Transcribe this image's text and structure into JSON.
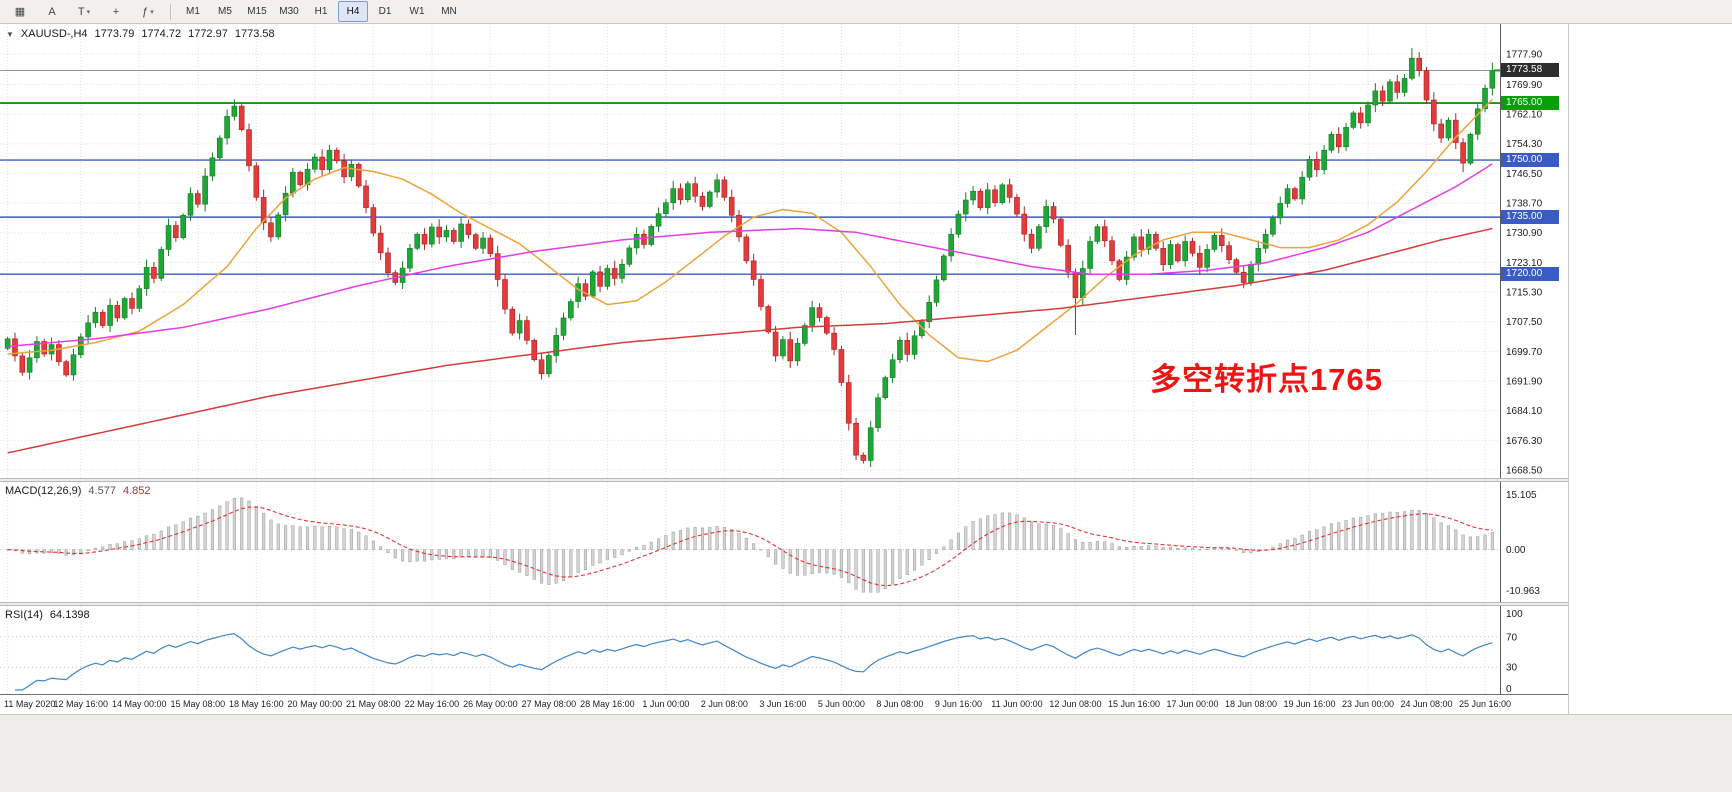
{
  "toolbar": {
    "icons": [
      {
        "name": "charts-grid-icon",
        "glyph": "▦",
        "caret": false
      },
      {
        "name": "auto-scroll-icon",
        "glyph": "A",
        "caret": false
      },
      {
        "name": "text-tool-icon",
        "glyph": "T",
        "caret": true
      },
      {
        "name": "crosshair-icon",
        "glyph": "+",
        "caret": false
      },
      {
        "name": "indicators-icon",
        "glyph": "ƒ",
        "caret": true
      }
    ],
    "timeframes": [
      {
        "label": "M1",
        "active": false
      },
      {
        "label": "M5",
        "active": false
      },
      {
        "label": "M15",
        "active": false
      },
      {
        "label": "M30",
        "active": false
      },
      {
        "label": "H1",
        "active": false
      },
      {
        "label": "H4",
        "active": true
      },
      {
        "label": "D1",
        "active": false
      },
      {
        "label": "W1",
        "active": false
      },
      {
        "label": "MN",
        "active": false
      }
    ]
  },
  "chart": {
    "symbol_line": {
      "collapse_glyph": "▼",
      "symbol": "XAUUSD-,H4",
      "open": "1773.79",
      "high": "1774.72",
      "low": "1772.97",
      "close": "1773.58"
    },
    "annotation": {
      "text": "多空转折点1765",
      "color": "#f21414"
    },
    "price_axis": {
      "ticks": [
        "1777.90",
        "1769.90",
        "1762.10",
        "1754.30",
        "1746.50",
        "1738.70",
        "1730.90",
        "1723.10",
        "1715.30",
        "1707.50",
        "1699.70",
        "1691.90",
        "1684.10",
        "1676.30",
        "1668.50"
      ],
      "current": {
        "label": "1773.58",
        "price": 1773.58,
        "bg": "#2d2d2d"
      },
      "levels": [
        {
          "label": "1765.00",
          "price": 1765.0,
          "color": "#0a9e0a"
        },
        {
          "label": "1750.00",
          "price": 1750.0,
          "color": "#3b5bc4"
        },
        {
          "label": "1735.00",
          "price": 1735.0,
          "color": "#3b5bc4"
        },
        {
          "label": "1720.00",
          "price": 1720.0,
          "color": "#3b5bc4"
        }
      ]
    },
    "macd_panel": {
      "name": "MACD(12,26,9)",
      "value1": "4.577",
      "value2": "4.852",
      "scale_labels": [
        "15.105",
        "0.00",
        "-10.963"
      ]
    },
    "rsi_panel": {
      "name": "RSI(14)",
      "value": "64.1398",
      "scale_labels": [
        "100",
        "70",
        "30",
        "0"
      ]
    }
  },
  "chart_data": {
    "type": "candlestick",
    "symbol": "XAUUSD",
    "timeframe": "H4",
    "title": "XAUUSD-,H4",
    "ohlc_display": {
      "open": 1773.79,
      "high": 1774.72,
      "low": 1772.97,
      "close": 1773.58
    },
    "price_axis_range": [
      1668.5,
      1777.9
    ],
    "candle_up_color": "#1ea636",
    "candle_down_color": "#e23b3b",
    "first_open": 1700.5,
    "closes": [
      1703.0,
      1698.5,
      1694.2,
      1698.0,
      1702.3,
      1699.0,
      1701.5,
      1697.0,
      1693.5,
      1698.8,
      1703.5,
      1707.2,
      1710.0,
      1706.5,
      1711.8,
      1708.5,
      1713.6,
      1711.0,
      1716.2,
      1721.8,
      1718.9,
      1726.5,
      1732.8,
      1729.6,
      1735.5,
      1741.2,
      1738.4,
      1745.8,
      1750.6,
      1755.8,
      1761.5,
      1764.2,
      1758.0,
      1748.5,
      1740.2,
      1733.5,
      1729.8,
      1735.6,
      1741.3,
      1746.8,
      1743.5,
      1747.6,
      1750.8,
      1747.5,
      1752.6,
      1749.8,
      1745.6,
      1748.9,
      1743.2,
      1737.5,
      1730.8,
      1725.6,
      1720.4,
      1717.8,
      1721.6,
      1726.8,
      1730.5,
      1727.9,
      1732.4,
      1729.8,
      1731.5,
      1728.6,
      1733.2,
      1730.4,
      1726.8,
      1729.5,
      1725.4,
      1718.6,
      1710.8,
      1704.5,
      1707.8,
      1702.6,
      1697.5,
      1693.8,
      1698.6,
      1703.9,
      1708.5,
      1712.8,
      1717.5,
      1714.2,
      1720.6,
      1716.8,
      1721.5,
      1718.9,
      1722.6,
      1726.9,
      1730.5,
      1727.8,
      1732.6,
      1735.9,
      1738.8,
      1742.5,
      1739.6,
      1743.8,
      1740.5,
      1737.8,
      1741.6,
      1744.8,
      1740.2,
      1735.5,
      1729.8,
      1723.5,
      1718.6,
      1711.5,
      1704.8,
      1698.5,
      1702.8,
      1697.2,
      1701.8,
      1706.5,
      1711.2,
      1708.6,
      1704.5,
      1700.2,
      1691.5,
      1680.8,
      1672.4,
      1671.0,
      1679.6,
      1687.5,
      1692.8,
      1697.5,
      1702.6,
      1698.9,
      1703.8,
      1707.5,
      1712.6,
      1718.5,
      1724.8,
      1730.5,
      1735.8,
      1739.5,
      1741.8,
      1737.5,
      1742.2,
      1738.8,
      1743.5,
      1740.2,
      1735.8,
      1730.5,
      1726.8,
      1732.5,
      1737.8,
      1734.5,
      1727.6,
      1720.5,
      1713.8,
      1721.5,
      1728.6,
      1732.5,
      1728.8,
      1723.5,
      1718.6,
      1724.5,
      1729.8,
      1726.5,
      1730.5,
      1726.8,
      1722.5,
      1727.8,
      1723.5,
      1728.6,
      1725.5,
      1721.8,
      1726.5,
      1730.2,
      1727.5,
      1723.8,
      1720.5,
      1717.8,
      1722.6,
      1726.8,
      1730.5,
      1734.8,
      1738.6,
      1742.5,
      1739.8,
      1745.5,
      1750.2,
      1747.5,
      1752.6,
      1756.8,
      1753.5,
      1758.6,
      1762.4,
      1759.8,
      1764.5,
      1768.2,
      1765.5,
      1770.6,
      1767.8,
      1771.5,
      1776.8,
      1773.5,
      1765.8,
      1759.5,
      1755.8,
      1760.5,
      1754.6,
      1749.2,
      1756.8,
      1763.5,
      1768.9,
      1773.58
    ],
    "wick_overrides": {
      "31": {
        "high": 1766.0
      },
      "117": {
        "low": 1670.2
      },
      "146": {
        "low": 1704.0
      },
      "192": {
        "high": 1779.5
      },
      "199": {
        "low": 1746.8
      }
    },
    "horizontal_levels": [
      1765.0,
      1750.0,
      1735.0,
      1720.0
    ],
    "moving_averages": [
      {
        "name": "ma-fast",
        "color": "#eda33c",
        "anchors": [
          [
            0,
            1699
          ],
          [
            6,
            1700
          ],
          [
            12,
            1702
          ],
          [
            18,
            1705
          ],
          [
            24,
            1712
          ],
          [
            30,
            1722
          ],
          [
            34,
            1732
          ],
          [
            38,
            1740
          ],
          [
            42,
            1745
          ],
          [
            46,
            1748
          ],
          [
            50,
            1747
          ],
          [
            54,
            1745
          ],
          [
            58,
            1741
          ],
          [
            62,
            1736
          ],
          [
            66,
            1732
          ],
          [
            70,
            1728
          ],
          [
            74,
            1722
          ],
          [
            78,
            1716
          ],
          [
            82,
            1712
          ],
          [
            86,
            1713
          ],
          [
            90,
            1718
          ],
          [
            94,
            1724
          ],
          [
            98,
            1730
          ],
          [
            102,
            1735
          ],
          [
            106,
            1737
          ],
          [
            110,
            1736
          ],
          [
            114,
            1731
          ],
          [
            118,
            1722
          ],
          [
            122,
            1712
          ],
          [
            126,
            1704
          ],
          [
            130,
            1698
          ],
          [
            134,
            1697
          ],
          [
            138,
            1700
          ],
          [
            142,
            1706
          ],
          [
            146,
            1712
          ],
          [
            150,
            1719
          ],
          [
            154,
            1725
          ],
          [
            158,
            1729
          ],
          [
            162,
            1731
          ],
          [
            166,
            1731
          ],
          [
            170,
            1729
          ],
          [
            174,
            1727
          ],
          [
            178,
            1727
          ],
          [
            182,
            1729
          ],
          [
            186,
            1733
          ],
          [
            190,
            1739
          ],
          [
            194,
            1747
          ],
          [
            198,
            1756
          ],
          [
            203,
            1766
          ]
        ]
      },
      {
        "name": "ma-mid",
        "color": "#e53ce5",
        "anchors": [
          [
            0,
            1701
          ],
          [
            12,
            1703
          ],
          [
            24,
            1706
          ],
          [
            36,
            1711
          ],
          [
            48,
            1717
          ],
          [
            60,
            1722
          ],
          [
            72,
            1726
          ],
          [
            84,
            1729
          ],
          [
            96,
            1731
          ],
          [
            108,
            1732
          ],
          [
            116,
            1731
          ],
          [
            124,
            1728
          ],
          [
            132,
            1725
          ],
          [
            140,
            1722
          ],
          [
            148,
            1720
          ],
          [
            156,
            1720
          ],
          [
            164,
            1721
          ],
          [
            172,
            1723
          ],
          [
            180,
            1727
          ],
          [
            186,
            1731
          ],
          [
            192,
            1737
          ],
          [
            198,
            1743
          ],
          [
            203,
            1749
          ]
        ]
      },
      {
        "name": "ma-slow",
        "color": "#d43c3c",
        "anchors": [
          [
            0,
            1673
          ],
          [
            12,
            1678
          ],
          [
            24,
            1683
          ],
          [
            36,
            1688
          ],
          [
            48,
            1692
          ],
          [
            60,
            1696
          ],
          [
            72,
            1699
          ],
          [
            84,
            1702
          ],
          [
            96,
            1704
          ],
          [
            108,
            1706
          ],
          [
            120,
            1707
          ],
          [
            132,
            1709
          ],
          [
            144,
            1711
          ],
          [
            156,
            1714
          ],
          [
            168,
            1717
          ],
          [
            180,
            1721
          ],
          [
            188,
            1725
          ],
          [
            196,
            1729
          ],
          [
            203,
            1732
          ]
        ]
      }
    ],
    "time_labels": [
      "11 May 2020",
      "12 May 16:00",
      "14 May 00:00",
      "15 May 08:00",
      "18 May 16:00",
      "20 May 00:00",
      "21 May 08:00",
      "22 May 16:00",
      "26 May 00:00",
      "27 May 08:00",
      "28 May 16:00",
      "1 Jun 00:00",
      "2 Jun 08:00",
      "3 Jun 16:00",
      "5 Jun 00:00",
      "8 Jun 08:00",
      "9 Jun 16:00",
      "11 Jun 00:00",
      "12 Jun 08:00",
      "15 Jun 16:00",
      "17 Jun 00:00",
      "18 Jun 08:00",
      "19 Jun 16:00",
      "23 Jun 00:00",
      "24 Jun 08:00",
      "25 Jun 16:00"
    ],
    "label_indices": [
      0,
      10,
      18,
      26,
      34,
      42,
      50,
      58,
      66,
      74,
      82,
      90,
      98,
      106,
      114,
      122,
      130,
      138,
      146,
      154,
      162,
      170,
      178,
      186,
      194,
      202
    ],
    "macd": {
      "params": [
        12,
        26,
        9
      ],
      "display_values": [
        4.577,
        4.852
      ],
      "scale": {
        "max": 15.105,
        "mid": 0.0,
        "min": -10.963
      },
      "histogram_color": "#d4d4d4",
      "histogram_border": "#9a9a9a",
      "signal_color": "#e23333",
      "derived_from": "closes"
    },
    "rsi": {
      "period": 14,
      "display_value": 64.1398,
      "levels": [
        70,
        30
      ],
      "range": [
        0,
        100
      ],
      "color": "#3f86c9",
      "derived_from": "closes"
    }
  }
}
